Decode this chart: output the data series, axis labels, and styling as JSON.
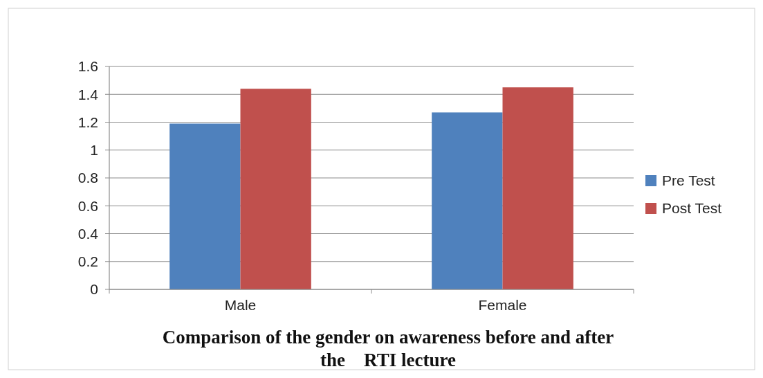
{
  "chart_data": {
    "type": "bar",
    "title": "Comparison of the gender on awareness before and after the    RTI lecture",
    "categories": [
      "Male",
      "Female"
    ],
    "series": [
      {
        "name": "Pre Test",
        "color": "#4f81bd",
        "values": [
          1.19,
          1.27
        ]
      },
      {
        "name": "Post Test",
        "color": "#c0504d",
        "values": [
          1.44,
          1.45
        ]
      }
    ],
    "ylim": [
      0,
      1.6
    ],
    "yticks": [
      0,
      0.2,
      0.4,
      0.6,
      0.8,
      1,
      1.2,
      1.4,
      1.6
    ],
    "grid": "y",
    "legend": "right"
  }
}
